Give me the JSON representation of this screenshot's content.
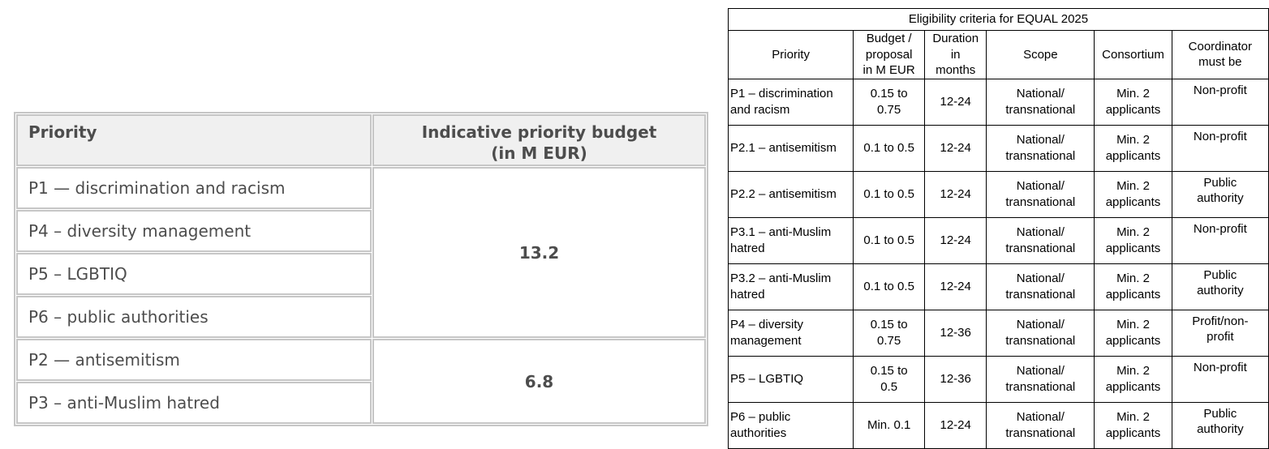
{
  "budget_table": {
    "header_priority": "Priority",
    "header_budget": "Indicative priority budget\n(in M EUR)",
    "rows": [
      "P1 — discrimination and racism",
      "P4 – diversity management",
      "P5 – LGBTIQ",
      "P6 – public authorities",
      "P2 — antisemitism",
      "P3 – anti-Muslim hatred"
    ],
    "group_budgets": [
      "13.2",
      "6.8"
    ]
  },
  "eligibility": {
    "title": "Eligibility criteria for EQUAL 2025",
    "headers": [
      "Priority",
      "Budget /\nproposal\nin M EUR",
      "Duration\nin\nmonths",
      "Scope",
      "Consortium",
      "Coordinator\nmust be"
    ],
    "rows": [
      {
        "priority": "P1 – discrimination\nand racism",
        "budget": "0.15 to\n0.75",
        "duration": "12-24",
        "scope": "National/\ntransnational",
        "consortium": "Min. 2\napplicants",
        "coordinator": "Non-profit"
      },
      {
        "priority": "P2.1 – antisemitism",
        "budget": "0.1 to 0.5",
        "duration": "12-24",
        "scope": "National/\ntransnational",
        "consortium": "Min. 2\napplicants",
        "coordinator": "Non-profit"
      },
      {
        "priority": "P2.2 – antisemitism",
        "budget": "0.1 to 0.5",
        "duration": "12-24",
        "scope": "National/\ntransnational",
        "consortium": "Min. 2\napplicants",
        "coordinator": "Public\nauthority"
      },
      {
        "priority": "P3.1 – anti-Muslim\nhatred",
        "budget": "0.1 to 0.5",
        "duration": "12-24",
        "scope": "National/\ntransnational",
        "consortium": "Min. 2\napplicants",
        "coordinator": "Non-profit"
      },
      {
        "priority": "P3.2 – anti-Muslim\nhatred",
        "budget": "0.1 to 0.5",
        "duration": "12-24",
        "scope": "National/\ntransnational",
        "consortium": "Min. 2\napplicants",
        "coordinator": "Public\nauthority"
      },
      {
        "priority": "P4 – diversity\nmanagement",
        "budget": "0.15 to\n0.75",
        "duration": "12-36",
        "scope": "National/\ntransnational",
        "consortium": "Min. 2\napplicants",
        "coordinator": "Profit/non-\nprofit"
      },
      {
        "priority": "P5 – LGBTIQ",
        "budget": "0.15 to\n0.5",
        "duration": "12-36",
        "scope": "National/\ntransnational",
        "consortium": "Min. 2\napplicants",
        "coordinator": "Non-profit"
      },
      {
        "priority": "P6 – public\nauthorities",
        "budget": "Min. 0.1",
        "duration": "12-24",
        "scope": "National/\ntransnational",
        "consortium": "Min. 2\napplicants",
        "coordinator": "Public\nauthority"
      }
    ]
  },
  "colors": {
    "budget_table_border": "#c6c6c6",
    "budget_table_header_bg": "#f0f0f0",
    "budget_table_text": "#4d4d4d",
    "elig_table_border": "#000000",
    "elig_table_text": "#000000",
    "page_bg": "#ffffff"
  }
}
